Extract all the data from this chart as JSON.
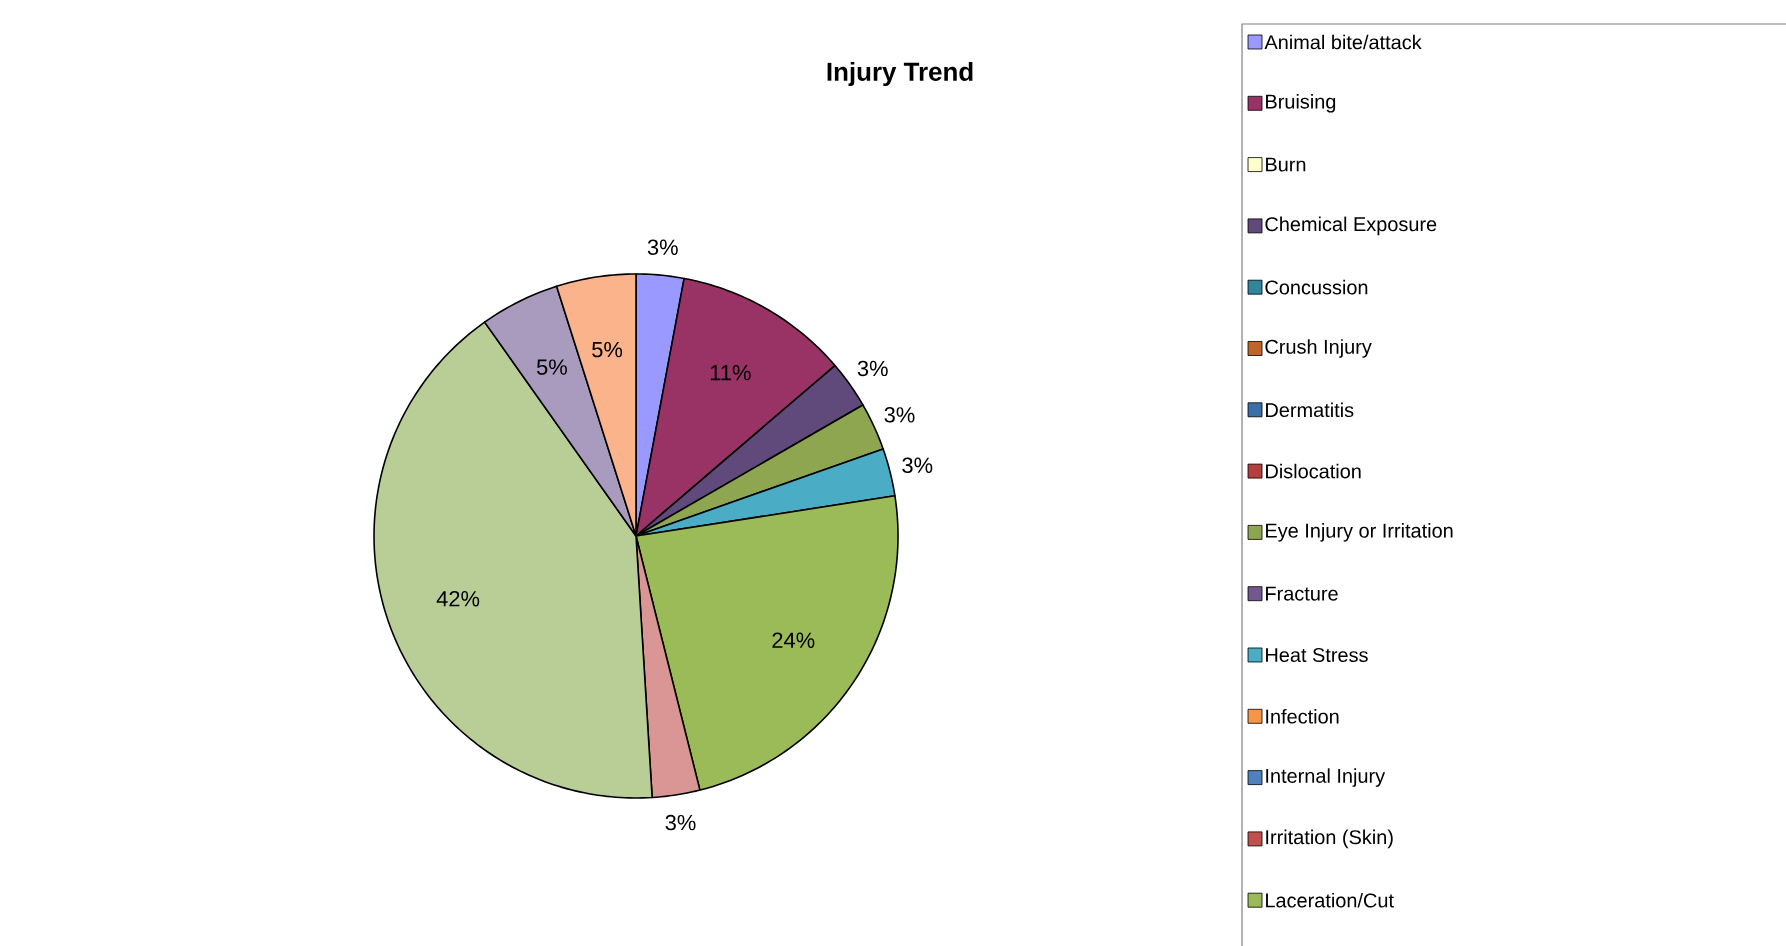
{
  "chart_data": {
    "type": "pie",
    "title": "Injury Trend",
    "categories": [
      "Animal bite/attack",
      "Bruising",
      "Burn",
      "Chemical Exposure",
      "Concussion",
      "Crush Injury",
      "Dermatitis",
      "Dislocation",
      "Eye Injury or Irritation",
      "Fracture",
      "Heat Stress",
      "Infection",
      "Internal Injury",
      "Irritation (Skin)",
      "Laceration/Cut",
      null,
      null,
      null,
      null
    ],
    "values": [
      3,
      11,
      0,
      3,
      0,
      0,
      0,
      0,
      3,
      0,
      3,
      0,
      0,
      0,
      24,
      3,
      42,
      5,
      5
    ],
    "value_labels": [
      "3%",
      "11%",
      null,
      "3%",
      null,
      null,
      null,
      null,
      "3%",
      null,
      "3%",
      null,
      null,
      null,
      "24%",
      "3%",
      "42%",
      "5%",
      "5%"
    ],
    "colors": [
      "#9999ff",
      "#993366",
      "#ffffcc",
      "#604a7b",
      "#31859c",
      "#c0652a",
      "#3a6fa8",
      "#b2403d",
      "#8ea650",
      "#71588f",
      "#4bacc6",
      "#f79646",
      "#4f81bd",
      "#c0504d",
      "#9bbb59",
      "#d99694",
      "#b9cd96",
      "#a99bbd",
      "#fab38a"
    ],
    "legend": "right"
  }
}
